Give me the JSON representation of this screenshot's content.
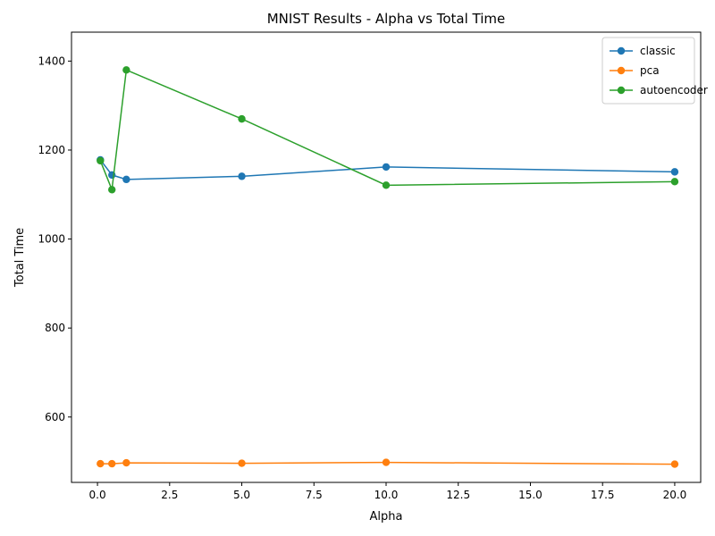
{
  "chart_data": {
    "type": "line",
    "title": "MNIST Results - Alpha vs Total Time",
    "xlabel": "Alpha",
    "ylabel": "Total Time",
    "xlim": [
      -0.9,
      20.9
    ],
    "ylim": [
      453,
      1465
    ],
    "x_ticks": [
      0.0,
      2.5,
      5.0,
      7.5,
      10.0,
      12.5,
      15.0,
      17.5,
      20.0
    ],
    "x_tick_labels": [
      "0.0",
      "2.5",
      "5.0",
      "7.5",
      "10.0",
      "12.5",
      "15.0",
      "17.5",
      "20.0"
    ],
    "y_ticks": [
      600,
      800,
      1000,
      1200,
      1400
    ],
    "y_tick_labels": [
      "600",
      "800",
      "1000",
      "1200",
      "1400"
    ],
    "grid": false,
    "legend_position": "top-right",
    "x": [
      0.1,
      0.5,
      1.0,
      5.0,
      10.0,
      20.0
    ],
    "series": [
      {
        "name": "classic",
        "color": "#1f77b4",
        "values": [
          1178,
          1144,
          1134,
          1141,
          1162,
          1151
        ]
      },
      {
        "name": "pca",
        "color": "#ff7f0e",
        "values": [
          495,
          495,
          497,
          496,
          498,
          494
        ]
      },
      {
        "name": "autoencoder",
        "color": "#2ca02c",
        "values": [
          1176,
          1111,
          1380,
          1270,
          1121,
          1129
        ]
      }
    ]
  }
}
